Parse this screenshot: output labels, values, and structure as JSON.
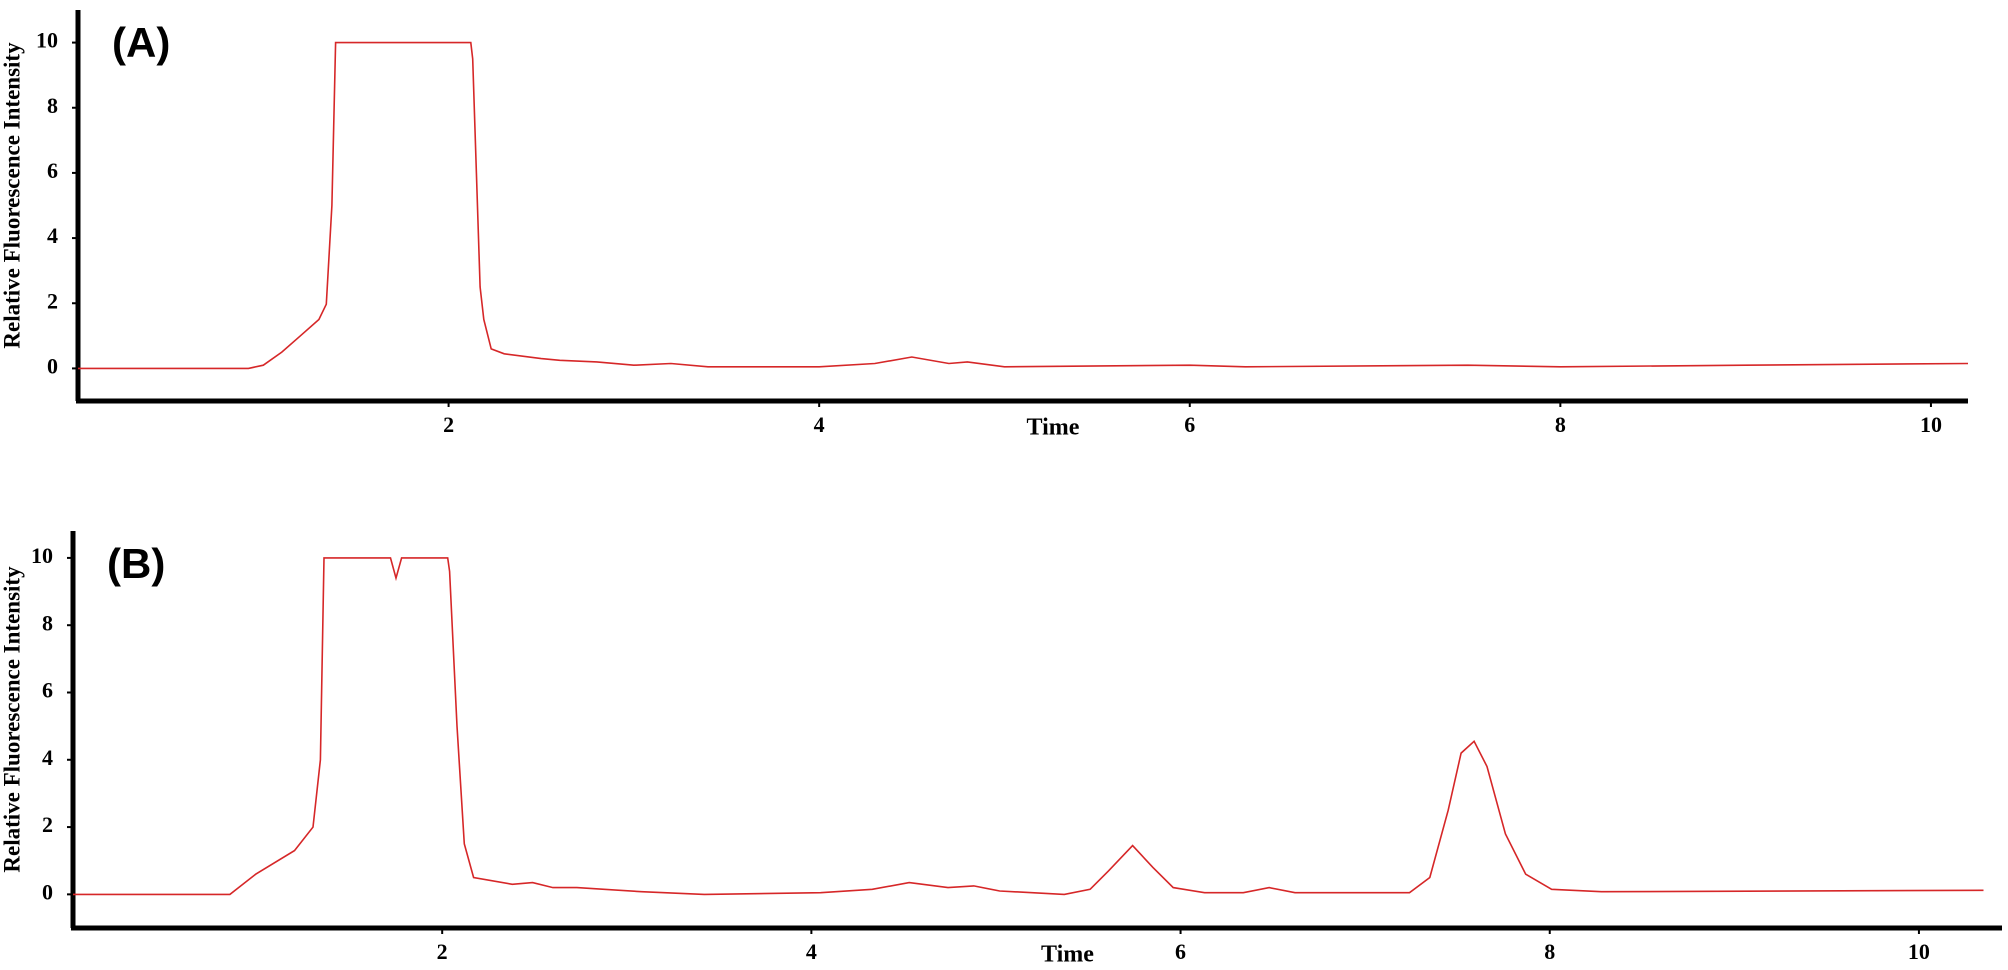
{
  "chart_data": [
    {
      "type": "line",
      "panel_label": "(A)",
      "xlabel": "Time",
      "ylabel": "Relative Fluorescence Intensity",
      "color": "#d62728",
      "xlim": [
        0,
        10.2
      ],
      "ylim": [
        -1,
        11
      ],
      "xticks": [
        2,
        4,
        6,
        8,
        10
      ],
      "yticks": [
        0,
        2,
        4,
        6,
        8,
        10
      ],
      "x": [
        0,
        0.92,
        1.0,
        1.1,
        1.2,
        1.3,
        1.34,
        1.37,
        1.39,
        1.45,
        2.12,
        2.13,
        2.15,
        2.17,
        2.19,
        2.23,
        2.3,
        2.5,
        2.6,
        2.8,
        3.0,
        3.2,
        3.4,
        4.0,
        4.3,
        4.5,
        4.7,
        4.8,
        5.0,
        6.0,
        6.3,
        7.5,
        8.0,
        9.0,
        10.2
      ],
      "values": [
        0,
        0,
        0.1,
        0.5,
        1.0,
        1.5,
        1.97,
        5.0,
        10,
        10,
        10,
        9.5,
        6,
        2.5,
        1.5,
        0.6,
        0.45,
        0.3,
        0.25,
        0.2,
        0.1,
        0.15,
        0.05,
        0.05,
        0.15,
        0.35,
        0.15,
        0.2,
        0.05,
        0.1,
        0.05,
        0.1,
        0.05,
        0.1,
        0.15
      ]
    },
    {
      "type": "line",
      "panel_label": "(B)",
      "xlabel": "Time",
      "ylabel": "Relative Fluorescence Intensity",
      "color": "#d62728",
      "xlim": [
        0,
        10.45
      ],
      "ylim": [
        -1,
        10.8
      ],
      "xticks": [
        2,
        4,
        6,
        8,
        10
      ],
      "yticks": [
        0,
        2,
        4,
        6,
        8,
        10
      ],
      "x": [
        0,
        0.85,
        0.99,
        1.2,
        1.3,
        1.34,
        1.36,
        1.72,
        1.75,
        1.78,
        2.03,
        2.04,
        2.08,
        2.12,
        2.17,
        2.38,
        2.49,
        2.6,
        2.73,
        3.08,
        3.42,
        4.05,
        4.33,
        4.53,
        4.74,
        4.88,
        5.02,
        5.37,
        5.51,
        5.61,
        5.74,
        5.85,
        5.96,
        6.13,
        6.34,
        6.48,
        6.62,
        7.24,
        7.35,
        7.45,
        7.52,
        7.59,
        7.66,
        7.76,
        7.87,
        8.01,
        8.28,
        10.35
      ],
      "values": [
        0,
        0,
        0.6,
        1.3,
        2.0,
        4,
        10,
        10,
        9.4,
        10,
        10,
        9.6,
        5,
        1.5,
        0.5,
        0.3,
        0.35,
        0.2,
        0.2,
        0.08,
        0,
        0.05,
        0.15,
        0.35,
        0.2,
        0.25,
        0.1,
        0,
        0.15,
        0.7,
        1.45,
        0.8,
        0.2,
        0.05,
        0.05,
        0.2,
        0.05,
        0.05,
        0.5,
        2.5,
        4.2,
        4.55,
        3.8,
        1.8,
        0.6,
        0.15,
        0.08,
        0.12
      ]
    }
  ]
}
